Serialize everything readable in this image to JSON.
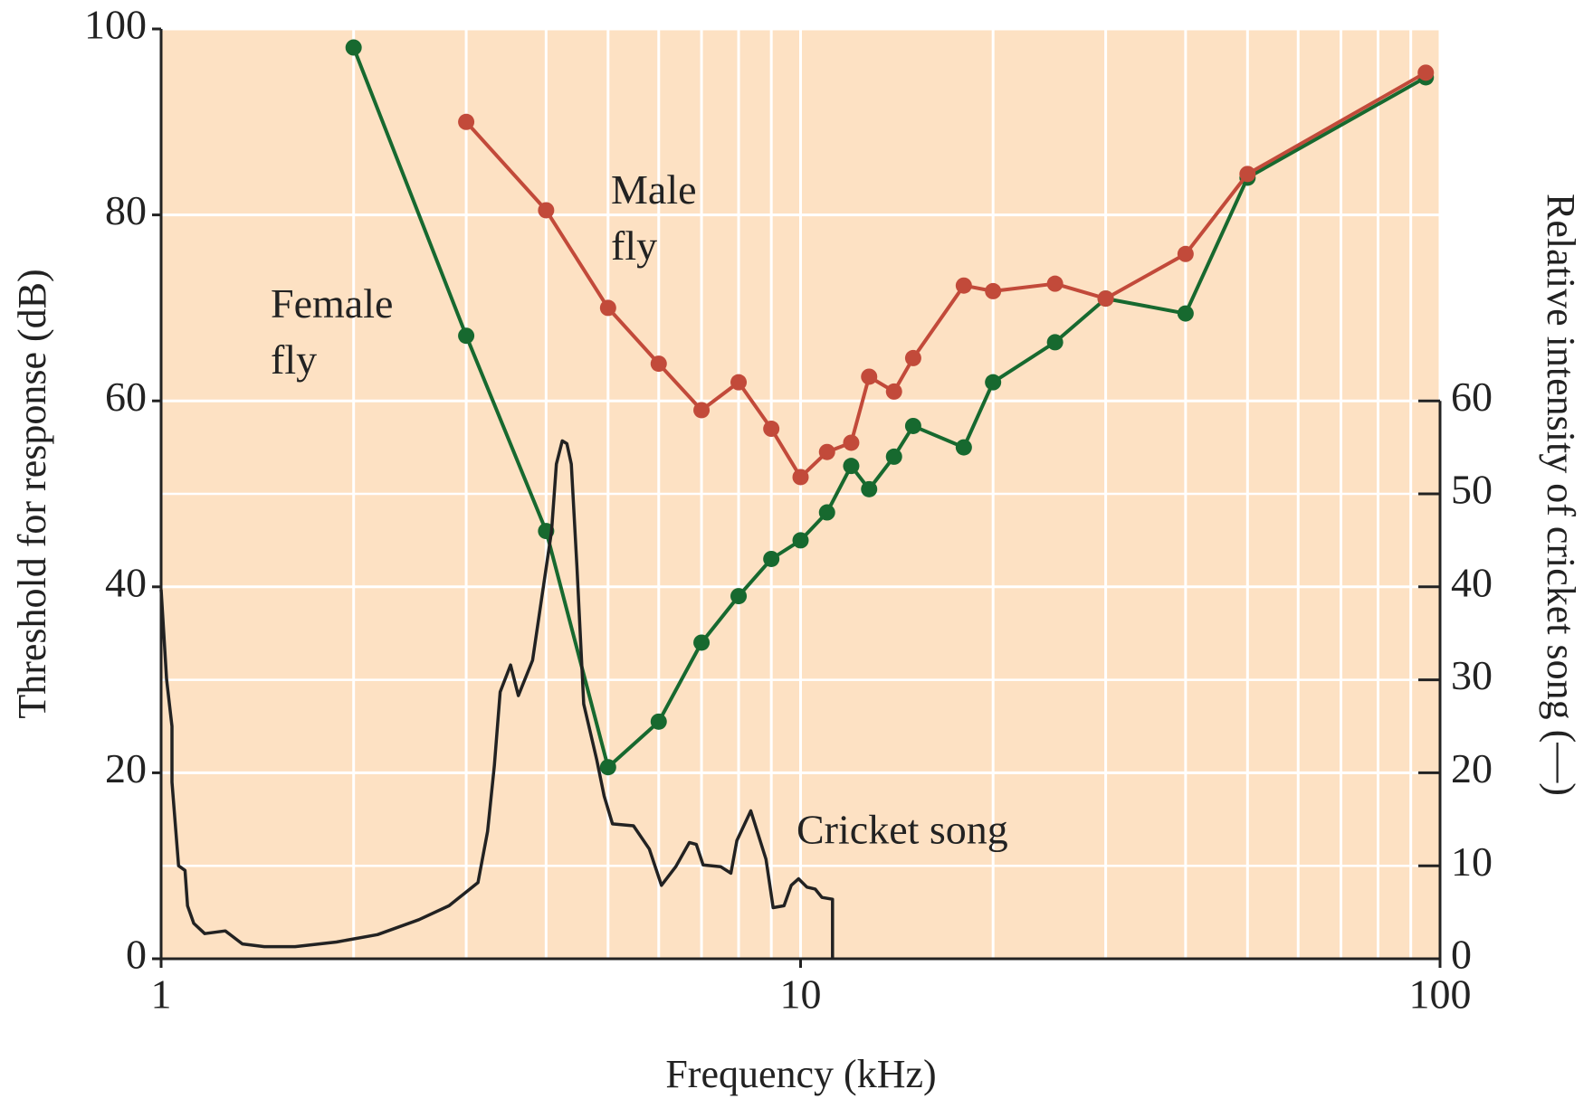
{
  "chart_data": {
    "type": "line",
    "xlabel": "Frequency (kHz)",
    "ylabel": "Threshold for response (dB)",
    "y2label": "Relative intensity of cricket song (—)",
    "xscale": "log",
    "xlim": [
      1,
      100
    ],
    "xticks": [
      1,
      10,
      100
    ],
    "xminorticks": [
      2,
      3,
      4,
      5,
      6,
      7,
      8,
      9,
      20,
      30,
      40,
      50,
      60,
      70,
      80,
      90
    ],
    "ylim": [
      0,
      100
    ],
    "yticks": [
      0,
      20,
      40,
      60,
      80,
      100
    ],
    "y2lim": [
      0,
      100
    ],
    "y2ticks": [
      0,
      10,
      20,
      30,
      40,
      50,
      60
    ],
    "grid": true,
    "background": "#fde1c3",
    "series": [
      {
        "name": "Female fly",
        "color": "#17692f",
        "axis": "y",
        "markers": true,
        "x": [
          2,
          3,
          4,
          5,
          6,
          7,
          8,
          9,
          10,
          11,
          12,
          12.8,
          14,
          15,
          18,
          20,
          25,
          30,
          40,
          50,
          95
        ],
        "values": [
          98,
          67,
          46,
          20.6,
          25.5,
          34,
          39,
          43,
          45,
          48,
          53,
          50.5,
          54,
          57.3,
          55,
          62,
          66.3,
          71,
          69.4,
          84,
          94.8
        ]
      },
      {
        "name": "Male fly",
        "color": "#c24a3a",
        "axis": "y",
        "markers": true,
        "x": [
          3,
          4,
          5,
          6,
          7,
          8,
          9,
          10,
          11,
          12,
          12.8,
          14,
          15,
          18,
          20,
          25,
          30,
          40,
          50,
          95
        ],
        "values": [
          90,
          80.5,
          70,
          64,
          59,
          62,
          57,
          51.8,
          54.5,
          55.5,
          62.6,
          61,
          64.6,
          72.4,
          71.8,
          72.6,
          71,
          75.8,
          84.4,
          95.3
        ]
      },
      {
        "name": "Cricket song",
        "color": "#222222",
        "axis": "y2",
        "markers": false,
        "x": [
          1,
          1.02,
          1.04,
          1.04,
          1.065,
          1.09,
          1.1,
          1.125,
          1.17,
          1.26,
          1.34,
          1.45,
          1.62,
          1.88,
          2.18,
          2.53,
          2.82,
          3.13,
          3.24,
          3.32,
          3.39,
          3.52,
          3.62,
          3.81,
          3.93,
          4.08,
          4.15,
          4.24,
          4.31,
          4.38,
          4.47,
          4.58,
          4.8,
          4.93,
          5.08,
          5.48,
          5.8,
          6.06,
          6.38,
          6.7,
          6.87,
          7.04,
          7.5,
          7.78,
          7.95,
          8.36,
          8.83,
          9.06,
          9.42,
          9.67,
          9.93,
          10.23,
          10.54,
          10.8,
          11.22,
          11.22
        ],
        "values": [
          39.7,
          30,
          25,
          19,
          10,
          9.5,
          5.7,
          3.8,
          2.7,
          3,
          1.6,
          1.3,
          1.3,
          1.8,
          2.6,
          4.2,
          5.7,
          8.2,
          13.7,
          20.8,
          28.7,
          31.6,
          28.3,
          32.1,
          38.4,
          46,
          53.2,
          55.7,
          55.4,
          53.2,
          42.2,
          27.4,
          21.4,
          17.5,
          14.5,
          14.3,
          11.8,
          7.9,
          9.9,
          12.5,
          12.3,
          10.1,
          9.9,
          9.2,
          12.7,
          15.9,
          10.7,
          5.5,
          5.7,
          7.9,
          8.6,
          7.7,
          7.5,
          6.6,
          6.4,
          0
        ]
      }
    ]
  }
}
